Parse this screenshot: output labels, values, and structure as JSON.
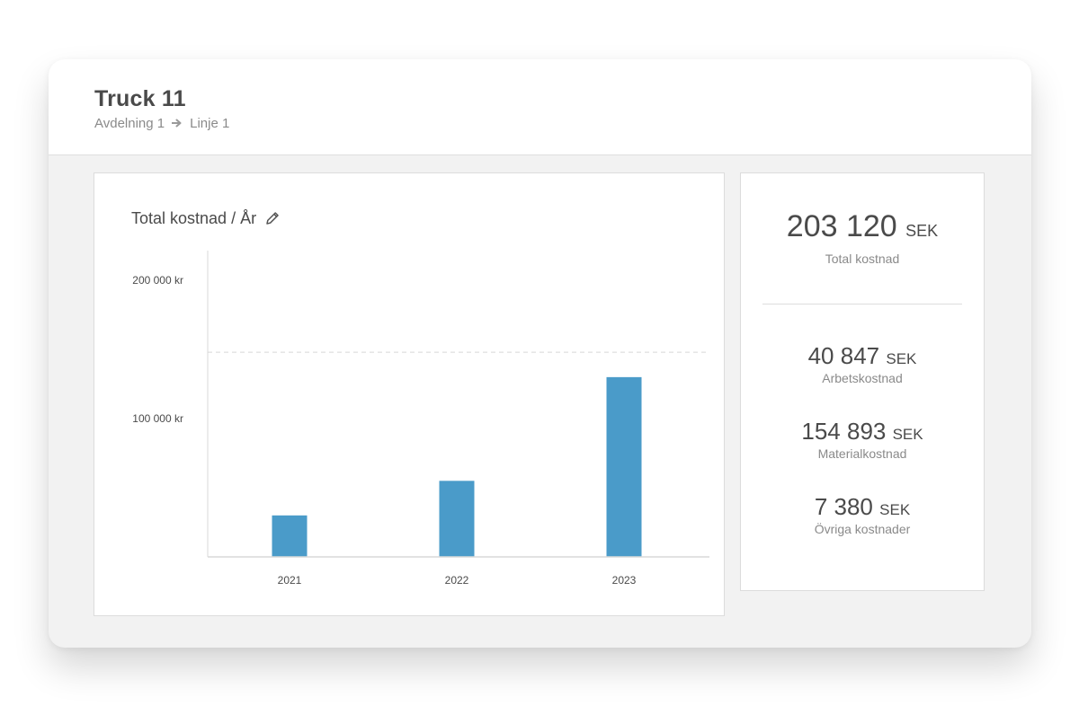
{
  "header": {
    "title": "Truck 11",
    "breadcrumb": [
      "Avdelning 1",
      "Linje 1"
    ]
  },
  "chart_card": {
    "title": "Total kostnad / År"
  },
  "chart_data": {
    "type": "bar",
    "title": "Total kostnad / År",
    "categories": [
      "2021",
      "2022",
      "2023"
    ],
    "values": [
      30000,
      55000,
      130000
    ],
    "yticks": [
      {
        "value": 100000,
        "label": "100 000 kr"
      },
      {
        "value": 200000,
        "label": "200 000 kr"
      }
    ],
    "reference_line": 148000,
    "ylim": [
      0,
      215000
    ],
    "color": "#4a9bc9"
  },
  "stats": {
    "total": {
      "value": "203 120",
      "unit": "SEK",
      "label": "Total kostnad"
    },
    "items": [
      {
        "value": "40 847",
        "unit": "SEK",
        "label": "Arbetskostnad"
      },
      {
        "value": "154 893",
        "unit": "SEK",
        "label": "Materialkostnad"
      },
      {
        "value": "7 380",
        "unit": "SEK",
        "label": "Övriga kostnader"
      }
    ]
  },
  "colors": {
    "bar": "#4a9bc9",
    "text": "#4a4a4a",
    "muted": "#8a8a8a",
    "background": "#f2f2f2"
  },
  "icons": {
    "breadcrumb_separator": "arrow-right-icon",
    "edit": "pencil-icon"
  }
}
